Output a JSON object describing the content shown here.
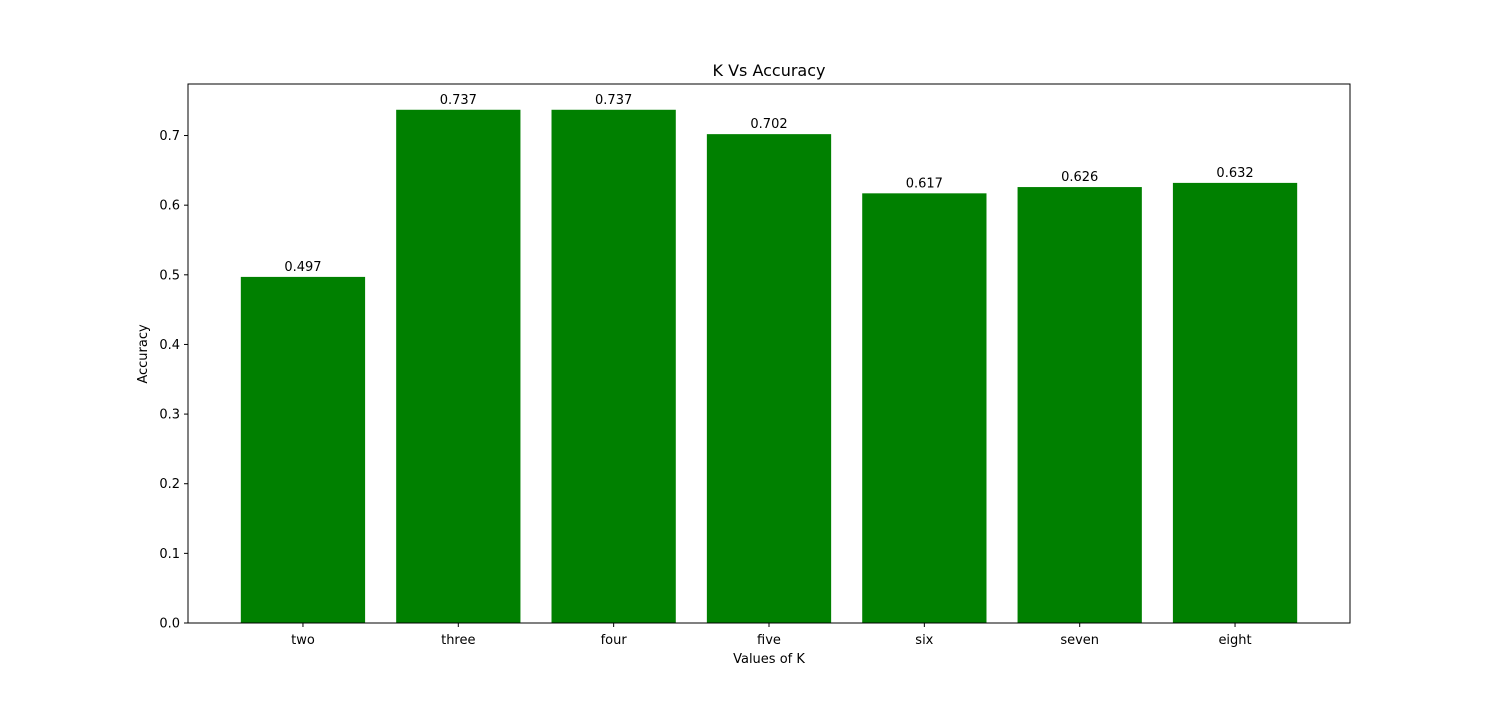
{
  "chart_data": {
    "type": "bar",
    "title": "K Vs Accuracy",
    "xlabel": "Values of K",
    "ylabel": "Accuracy",
    "categories": [
      "two",
      "three",
      "four",
      "five",
      "six",
      "seven",
      "eight"
    ],
    "values": [
      0.497,
      0.737,
      0.737,
      0.702,
      0.617,
      0.626,
      0.632
    ],
    "value_labels": [
      "0.497",
      "0.737",
      "0.737",
      "0.702",
      "0.617",
      "0.626",
      "0.632"
    ],
    "yticks": [
      0.0,
      0.1,
      0.2,
      0.3,
      0.4,
      0.5,
      0.6,
      0.7
    ],
    "ytick_labels": [
      "0.0",
      "0.1",
      "0.2",
      "0.3",
      "0.4",
      "0.5",
      "0.6",
      "0.7"
    ],
    "ylim": [
      0,
      0.774
    ],
    "bar_color": "#008000",
    "grid": false,
    "legend": "none"
  }
}
